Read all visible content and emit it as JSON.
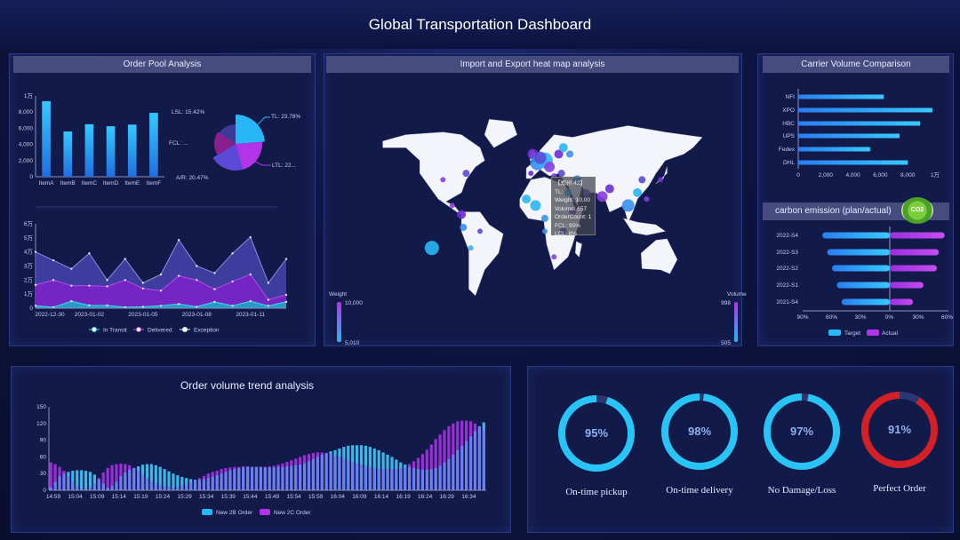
{
  "header": {
    "title": "Global Transportation Dashboard"
  },
  "panels": {
    "order_pool": "Order Pool Analysis",
    "heatmap": "Import and Export heat map analysis",
    "carrier": "Carrier Volume Comparison",
    "carbon": "carbon emission (plan/actual)",
    "trend": "Order volume trend analysis"
  },
  "colors": {
    "accent": "#29b6f6",
    "purple": "#b234e8",
    "danger": "#d32027",
    "bg": "#121a4a"
  },
  "carbon_badge": {
    "icon": "co2-badge-icon",
    "text": "CO2"
  },
  "chart_data": [
    {
      "id": "order-pool-bar",
      "type": "bar",
      "categories": [
        "ItemA",
        "ItemB",
        "ItemC",
        "ItemD",
        "ItemE",
        "ItemF"
      ],
      "values": [
        9350,
        5600,
        6500,
        6250,
        6450,
        7900
      ],
      "ylim": [
        0,
        10000
      ],
      "yticks": [
        "0",
        "2,000",
        "4,000",
        "6,000",
        "8,000",
        "1万"
      ]
    },
    {
      "id": "order-pool-pie",
      "type": "pie",
      "slices": [
        {
          "label": "TL: 23.78%",
          "value": 23.78,
          "color": "#29b6f6"
        },
        {
          "label": "LTL: 22...",
          "value": 22,
          "color": "#b234e8"
        },
        {
          "label": "A/R: 20.47%",
          "value": 20.47,
          "color": "#5b4ad6"
        },
        {
          "label": "FCL: ...",
          "value": 18.33,
          "color": "#8a1e8c"
        },
        {
          "label": "LSL: 15.42%",
          "value": 15.42,
          "color": "#3a3a9a"
        }
      ]
    },
    {
      "id": "order-status-area",
      "type": "area",
      "x": [
        "2022-12-30",
        "2022-12-31",
        "2023-01-01",
        "2023-01-02",
        "2023-01-03",
        "2023-01-04",
        "2023-01-05",
        "2023-01-06",
        "2023-01-07",
        "2023-01-08",
        "2023-01-09",
        "2023-01-10",
        "2023-01-11",
        "2023-01-12",
        "2023-01-13"
      ],
      "xticks": [
        "2022-12-30",
        "2023-01-02",
        "2023-01-05",
        "2023-01-08",
        "2023-01-11"
      ],
      "ylim": [
        0,
        60000
      ],
      "yticks": [
        "0",
        "1万",
        "2万",
        "3万",
        "4万",
        "5万",
        "6万"
      ],
      "series": [
        {
          "name": "Exception",
          "color": "#4a45b0",
          "values": [
            40000,
            34000,
            28000,
            39000,
            20000,
            35000,
            18000,
            24000,
            48500,
            30000,
            25000,
            39000,
            50500,
            18000,
            35000
          ]
        },
        {
          "name": "Delivered",
          "color": "#7a22c8",
          "values": [
            16500,
            20000,
            16000,
            16000,
            15500,
            20000,
            14000,
            12500,
            23000,
            20000,
            13500,
            19000,
            24000,
            6000,
            9500
          ]
        },
        {
          "name": "In Transit",
          "color": "#1fa9c9",
          "values": [
            1700,
            700,
            5000,
            2000,
            2000,
            700,
            1000,
            1700,
            3000,
            1000,
            4500,
            1700,
            5000,
            1700,
            4500
          ]
        }
      ],
      "legend": [
        "In Transit",
        "Delivered",
        "Exception"
      ]
    },
    {
      "id": "carrier-volume",
      "type": "bar",
      "orientation": "horizontal",
      "categories": [
        "NFI",
        "XPO",
        "HBC",
        "UPS",
        "Fedex",
        "DHL"
      ],
      "values": [
        6250,
        9800,
        8900,
        7400,
        5250,
        8000
      ],
      "xlim": [
        0,
        10000
      ],
      "xticks": [
        "0",
        "2,000",
        "4,000",
        "6,000",
        "8,000",
        "1万"
      ]
    },
    {
      "id": "carbon-emission",
      "type": "bar",
      "orientation": "diverging",
      "categories": [
        "2022-S4",
        "2022-S3",
        "2022-S2",
        "2022-S1",
        "2021-S4"
      ],
      "series": [
        {
          "name": "Target",
          "values": [
            70,
            65,
            60,
            55,
            50
          ]
        },
        {
          "name": "Actual",
          "values": [
            57,
            51,
            49,
            35,
            24
          ]
        }
      ],
      "xticks": [
        "90%",
        "60%",
        "30%",
        "0%",
        "30%",
        "60%"
      ]
    },
    {
      "id": "order-trend",
      "type": "bar",
      "title": "Order volume trend analysis",
      "start": "14:59",
      "xticks": [
        "14:59",
        "15:04",
        "15:09",
        "15:14",
        "15:19",
        "15:24",
        "15:29",
        "15:34",
        "15:39",
        "15:44",
        "15:49",
        "15:54",
        "15:59",
        "16:04",
        "16:09",
        "16:14",
        "16:19",
        "16:24",
        "16:29",
        "16:34"
      ],
      "ylim": [
        0,
        150
      ],
      "yticks": [
        "0",
        "30",
        "60",
        "90",
        "120",
        "150"
      ],
      "series": [
        {
          "name": "New 2B Order",
          "color": "#29b6f6",
          "values": [
            5,
            15,
            25,
            30,
            33,
            35,
            36,
            36,
            35,
            33,
            28,
            20,
            12,
            5,
            8,
            15,
            25,
            32,
            37,
            40,
            43,
            46,
            47,
            47,
            45,
            42,
            38,
            34,
            30,
            27,
            24,
            22,
            20,
            19,
            19,
            20,
            22,
            24,
            27,
            30,
            33,
            36,
            38,
            40,
            41,
            42,
            42,
            42,
            42,
            41,
            41,
            41,
            42,
            42,
            43,
            44,
            45,
            46,
            48,
            52,
            56,
            60,
            64,
            67,
            70,
            72,
            75,
            78,
            80,
            81,
            81,
            81,
            80,
            78,
            75,
            72,
            68,
            64,
            60,
            55,
            50,
            46,
            42,
            40,
            38,
            37,
            37,
            38,
            40,
            44,
            50,
            56,
            64,
            72,
            80,
            88,
            97,
            106,
            115,
            122
          ]
        },
        {
          "name": "New 2C Order",
          "color": "#b234e8",
          "values": [
            50,
            47,
            42,
            35,
            25,
            15,
            8,
            3,
            2,
            5,
            12,
            22,
            32,
            40,
            45,
            47,
            48,
            47,
            45,
            40,
            35,
            28,
            22,
            16,
            12,
            9,
            7,
            6,
            5,
            6,
            8,
            11,
            15,
            19,
            22,
            26,
            30,
            33,
            35,
            38,
            40,
            41,
            42,
            42,
            43,
            43,
            42,
            42,
            42,
            42,
            43,
            44,
            46,
            48,
            51,
            54,
            57,
            60,
            63,
            65,
            67,
            68,
            68,
            67,
            65,
            62,
            60,
            57,
            54,
            51,
            48,
            46,
            44,
            42,
            40,
            39,
            38,
            38,
            38,
            39,
            40,
            43,
            47,
            52,
            58,
            65,
            73,
            82,
            92,
            100,
            108,
            115,
            120,
            124,
            125,
            125,
            124,
            120,
            115,
            110
          ]
        }
      ]
    },
    {
      "id": "kpi-gauges",
      "type": "gauge",
      "items": [
        {
          "label": "On-time pickup",
          "value": 95,
          "text": "95%",
          "color": "#29c4f6"
        },
        {
          "label": "On-time delivery",
          "value": 98,
          "text": "98%",
          "color": "#29c4f6"
        },
        {
          "label": "No Damage/Loss",
          "value": 97,
          "text": "97%",
          "color": "#29c4f6"
        },
        {
          "label": "Perfect Order",
          "value": 91,
          "text": "91%",
          "color": "#d32027"
        }
      ]
    },
    {
      "id": "heatmap",
      "type": "scatter",
      "legend_weight": {
        "label": "Weight",
        "max": "10,000",
        "min": "5,010"
      },
      "legend_volume": {
        "label": "Volume",
        "max": "998",
        "min": "505"
      },
      "points": [
        [
          -112,
          -18,
          8
        ],
        [
          -75,
          40,
          4
        ],
        [
          -100,
          35,
          3
        ],
        [
          -80,
          8,
          5
        ],
        [
          -78,
          -2,
          4
        ],
        [
          -70,
          -18,
          3
        ],
        [
          -60,
          -5,
          3
        ],
        [
          -90,
          15,
          3
        ],
        [
          -3,
          55,
          6
        ],
        [
          2,
          48,
          8
        ],
        [
          10,
          50,
          9
        ],
        [
          5,
          52,
          7
        ],
        [
          15,
          45,
          6
        ],
        [
          25,
          55,
          5
        ],
        [
          37,
          55,
          4
        ],
        [
          30,
          60,
          5
        ],
        [
          28,
          40,
          4
        ],
        [
          20,
          38,
          3
        ],
        [
          -5,
          40,
          3
        ],
        [
          45,
          35,
          5
        ],
        [
          35,
          25,
          4
        ],
        [
          55,
          25,
          4
        ],
        [
          72,
          22,
          6
        ],
        [
          80,
          28,
          5
        ],
        [
          100,
          15,
          7
        ],
        [
          110,
          25,
          5
        ],
        [
          115,
          35,
          4
        ],
        [
          120,
          20,
          3
        ],
        [
          135,
          35,
          3
        ],
        [
          10,
          5,
          4
        ],
        [
          0,
          15,
          6
        ],
        [
          30,
          -5,
          4
        ],
        [
          20,
          -25,
          3
        ],
        [
          40,
          10,
          4
        ],
        [
          10,
          -5,
          3
        ],
        [
          -10,
          20,
          5
        ]
      ]
    },
    {
      "id": "heatmap-tooltip",
      "lines": [
        "【郑州:42】",
        "TL:",
        "Weight: 10,00",
        "Volume: 657",
        "OrderCount: 1",
        "FCL: 95%",
        "LCL: 8%"
      ]
    }
  ]
}
